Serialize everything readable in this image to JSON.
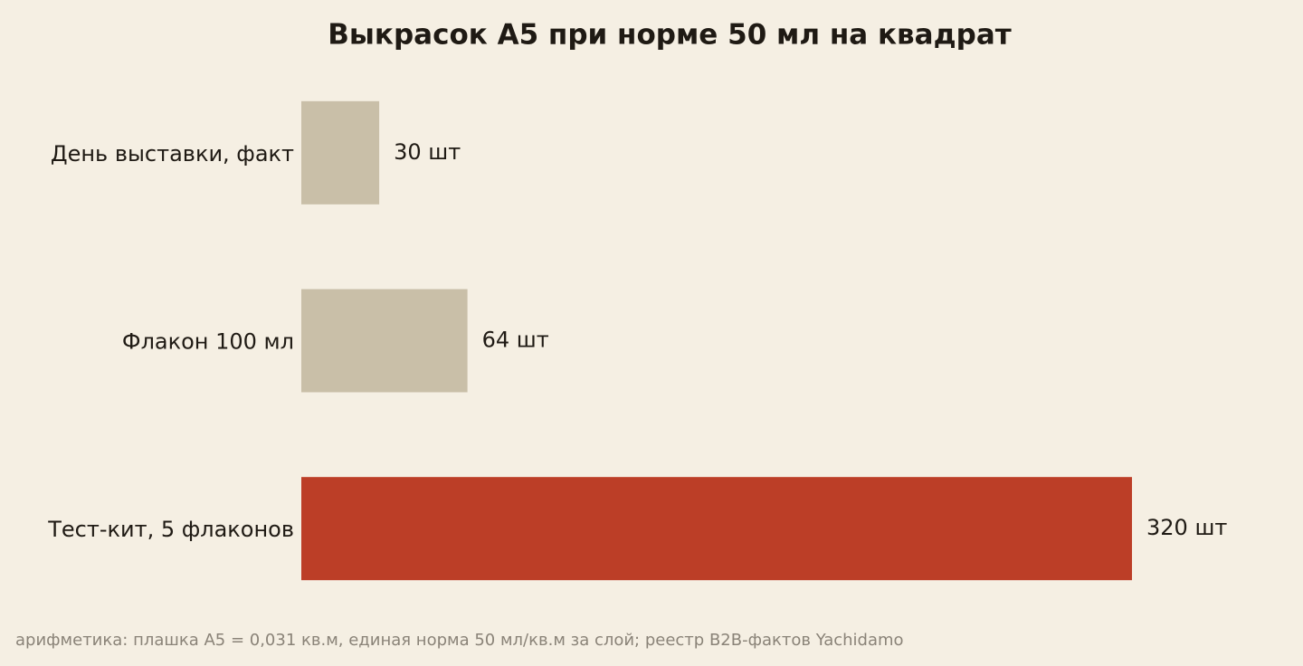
{
  "chart_data": {
    "type": "bar",
    "orientation": "horizontal",
    "title": "Выкрасок А5 при норме 50 мл на квадрат",
    "categories": [
      "День выставки, факт",
      "Флакон 100 мл",
      "Тест-кит, 5 флаконов"
    ],
    "values": [
      30,
      64,
      320
    ],
    "value_labels": [
      "30 шт",
      "64 шт",
      "320 шт"
    ],
    "colors": [
      "#c9bfa8",
      "#c9bfa8",
      "#bc3e27"
    ],
    "source": "арифметика: плашка А5 = 0,031 кв.м, единая норма 50 мл/кв.м за слой; реестр B2B-фактов Yachidamo"
  }
}
